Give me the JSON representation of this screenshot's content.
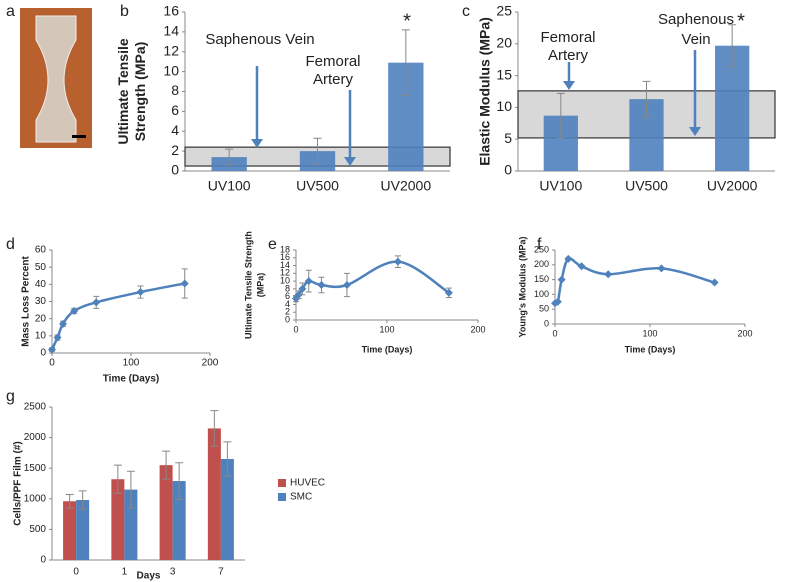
{
  "panel_a_label": "a",
  "chart_data": [
    {
      "type": "bar",
      "panel_label": "b",
      "y_label": [
        "Ultimate Tensile",
        "Strength (MPa)"
      ],
      "categories": [
        "UV100",
        "UV500",
        "UV2000"
      ],
      "values": [
        1.4,
        2.0,
        10.9
      ],
      "errors": [
        0.8,
        1.3,
        3.3
      ],
      "color": "#4f81bd",
      "ylim": [
        0,
        16
      ],
      "yticks": [
        0,
        2,
        4,
        6,
        8,
        10,
        12,
        14,
        16
      ],
      "band": [
        0.5,
        2.4
      ],
      "annotations": [
        {
          "lines": [
            "Saphenous Vein"
          ]
        },
        {
          "lines": [
            "Femoral",
            "Artery"
          ]
        },
        {
          "lines": [
            "*"
          ]
        }
      ]
    },
    {
      "type": "bar",
      "panel_label": "c",
      "y_label": [
        "Elastic Modulus (MPa)"
      ],
      "categories": [
        "UV100",
        "UV500",
        "UV2000"
      ],
      "values": [
        8.7,
        11.3,
        19.7
      ],
      "errors": [
        3.5,
        2.8,
        3.3
      ],
      "color": "#4f81bd",
      "ylim": [
        0,
        25
      ],
      "yticks": [
        0,
        5,
        10,
        15,
        20,
        25
      ],
      "band": [
        5.2,
        12.6
      ],
      "annotations": [
        {
          "lines": [
            "Femoral",
            "Artery"
          ]
        },
        {
          "lines": [
            "Saphenous",
            "Vein"
          ]
        },
        {
          "lines": [
            "*"
          ]
        }
      ]
    },
    {
      "type": "line",
      "panel_label": "d",
      "y_label": [
        "Mass Loss Percent"
      ],
      "x_label": "Time (Days)",
      "x": [
        0,
        7,
        14,
        28,
        56,
        112,
        168
      ],
      "values": [
        2,
        9,
        17,
        24.5,
        29.5,
        35.5,
        40.5
      ],
      "errors": [
        1,
        1.5,
        1.5,
        1.5,
        3.5,
        3.5,
        8.5
      ],
      "color": "#4f81bd",
      "xlim": [
        0,
        200
      ],
      "xticks": [
        0,
        100,
        200
      ],
      "ylim": [
        0,
        60
      ],
      "yticks": [
        0,
        10,
        20,
        30,
        40,
        50,
        60
      ]
    },
    {
      "type": "line",
      "panel_label": "e",
      "y_label": [
        "Ultimate Tensile Strength",
        "(MPa)"
      ],
      "x_label": "Time (Days)",
      "x": [
        0,
        3,
        7,
        14,
        28,
        56,
        112,
        168
      ],
      "values": [
        5.5,
        6.5,
        8,
        10,
        9,
        9,
        15,
        7
      ],
      "errors": [
        0.8,
        1,
        1.5,
        2.8,
        2,
        3,
        1.5,
        1.2
      ],
      "color": "#4f81bd",
      "xlim": [
        0,
        200
      ],
      "xticks": [
        0,
        100,
        200
      ],
      "ylim": [
        0,
        18
      ],
      "yticks": [
        0,
        2,
        4,
        6,
        8,
        10,
        12,
        14,
        16,
        18
      ]
    },
    {
      "type": "line",
      "panel_label": "f",
      "y_label": [
        "Young's Modulus (MPa)"
      ],
      "x_label": "Time (Days)",
      "x": [
        0,
        3,
        7,
        14,
        28,
        56,
        112,
        168
      ],
      "values": [
        70,
        75,
        150,
        220,
        195,
        168,
        188,
        140
      ],
      "color": "#4f81bd",
      "xlim": [
        0,
        200
      ],
      "xticks": [
        0,
        100,
        200
      ],
      "ylim": [
        0,
        250
      ],
      "yticks": [
        0,
        50,
        100,
        150,
        200,
        250
      ]
    },
    {
      "type": "grouped_bar",
      "panel_label": "g",
      "y_label": [
        "Cells/PPF Film (#)"
      ],
      "x_label": "Days",
      "categories": [
        "0",
        "1",
        "3",
        "7"
      ],
      "series": [
        {
          "name": "HUVEC",
          "color": "#c0504d",
          "values": [
            960,
            1320,
            1550,
            2150
          ],
          "errors": [
            110,
            230,
            230,
            290
          ]
        },
        {
          "name": "SMC",
          "color": "#4f81bd",
          "values": [
            980,
            1150,
            1290,
            1650
          ],
          "errors": [
            150,
            300,
            300,
            280
          ]
        }
      ],
      "ylim": [
        0,
        2500
      ],
      "yticks": [
        0,
        500,
        1000,
        1500,
        2000,
        2500
      ],
      "legend": "right"
    }
  ]
}
